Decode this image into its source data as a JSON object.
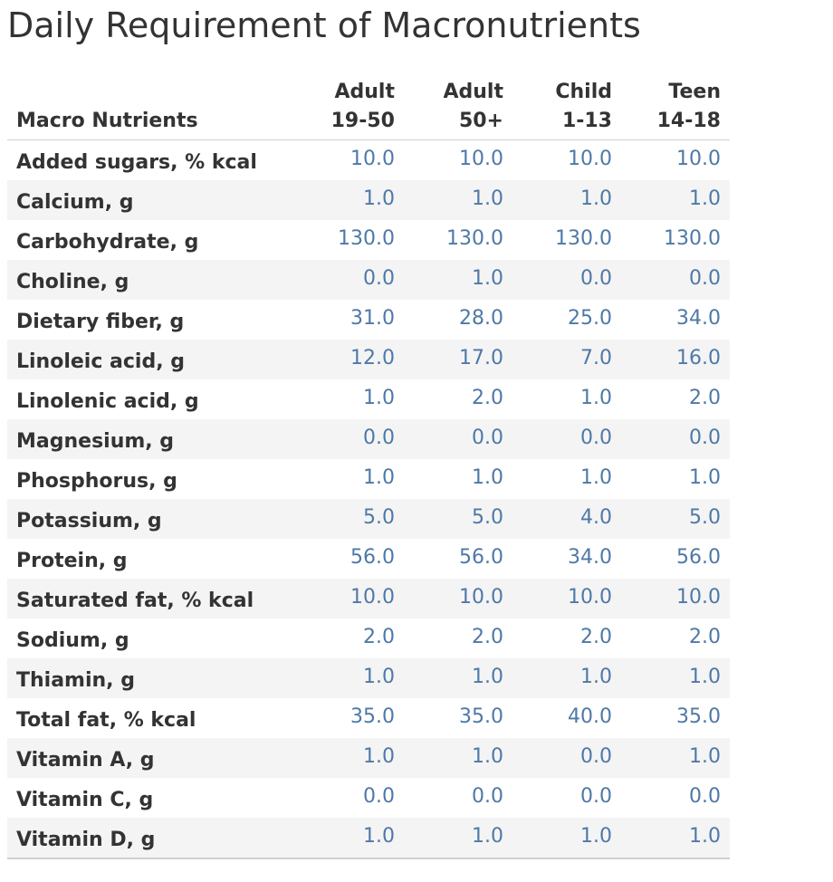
{
  "chart_data": {
    "type": "table",
    "title": "Daily Requirement of Macronutrients",
    "row_header": "Macro Nutrients",
    "columns": [
      {
        "line1": "Adult",
        "line2": "19-50"
      },
      {
        "line1": "Adult",
        "line2": "50+"
      },
      {
        "line1": "Child",
        "line2": "1-13"
      },
      {
        "line1": "Teen",
        "line2": "14-18"
      }
    ],
    "rows": [
      {
        "label": "Added sugars, % kcal",
        "values": [
          "10.0",
          "10.0",
          "10.0",
          "10.0"
        ]
      },
      {
        "label": "Calcium, g",
        "values": [
          "1.0",
          "1.0",
          "1.0",
          "1.0"
        ]
      },
      {
        "label": "Carbohydrate, g",
        "values": [
          "130.0",
          "130.0",
          "130.0",
          "130.0"
        ]
      },
      {
        "label": "Choline, g",
        "values": [
          "0.0",
          "1.0",
          "0.0",
          "0.0"
        ]
      },
      {
        "label": "Dietary fiber, g",
        "values": [
          "31.0",
          "28.0",
          "25.0",
          "34.0"
        ]
      },
      {
        "label": "Linoleic acid, g",
        "values": [
          "12.0",
          "17.0",
          "7.0",
          "16.0"
        ]
      },
      {
        "label": "Linolenic acid, g",
        "values": [
          "1.0",
          "2.0",
          "1.0",
          "2.0"
        ]
      },
      {
        "label": "Magnesium, g",
        "values": [
          "0.0",
          "0.0",
          "0.0",
          "0.0"
        ]
      },
      {
        "label": "Phosphorus, g",
        "values": [
          "1.0",
          "1.0",
          "1.0",
          "1.0"
        ]
      },
      {
        "label": "Potassium, g",
        "values": [
          "5.0",
          "5.0",
          "4.0",
          "5.0"
        ]
      },
      {
        "label": "Protein, g",
        "values": [
          "56.0",
          "56.0",
          "34.0",
          "56.0"
        ]
      },
      {
        "label": "Saturated fat, % kcal",
        "values": [
          "10.0",
          "10.0",
          "10.0",
          "10.0"
        ]
      },
      {
        "label": "Sodium, g",
        "values": [
          "2.0",
          "2.0",
          "2.0",
          "2.0"
        ]
      },
      {
        "label": "Thiamin, g",
        "values": [
          "1.0",
          "1.0",
          "1.0",
          "1.0"
        ]
      },
      {
        "label": "Total fat, % kcal",
        "values": [
          "35.0",
          "35.0",
          "40.0",
          "35.0"
        ]
      },
      {
        "label": "Vitamin A, g",
        "values": [
          "1.0",
          "1.0",
          "0.0",
          "1.0"
        ]
      },
      {
        "label": "Vitamin C, g",
        "values": [
          "0.0",
          "0.0",
          "0.0",
          "0.0"
        ]
      },
      {
        "label": "Vitamin D, g",
        "values": [
          "1.0",
          "1.0",
          "1.0",
          "1.0"
        ]
      }
    ],
    "colors": {
      "value_text": "#4e79a7",
      "label_text": "#333333",
      "band": "#f4f4f4"
    }
  }
}
